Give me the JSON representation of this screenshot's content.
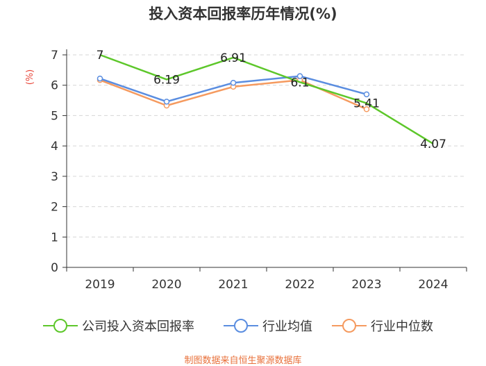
{
  "chart_data": {
    "type": "line",
    "title": "投入资本回报率历年情况(%)",
    "ylabel": "(%)",
    "xlabel": "",
    "ylim": [
      0,
      7
    ],
    "yticks": [
      0,
      1,
      2,
      3,
      4,
      5,
      6,
      7
    ],
    "categories": [
      "2019",
      "2020",
      "2021",
      "2022",
      "2023",
      "2024"
    ],
    "grid": "horizontal-dashed",
    "legend_position": "bottom",
    "series": [
      {
        "name": "公司投入资本回报率",
        "color": "#5dc72a",
        "values": [
          7,
          6.19,
          6.91,
          6.1,
          5.41,
          4.07
        ],
        "labels": [
          "7",
          "6.19",
          "6.91",
          "6.1",
          "5.41",
          "4.07"
        ]
      },
      {
        "name": "行业均值",
        "color": "#5a8de0",
        "values": [
          6.22,
          5.46,
          6.08,
          6.3,
          5.7,
          null
        ]
      },
      {
        "name": "行业中位数",
        "color": "#f59a5f",
        "values": [
          6.17,
          5.33,
          5.95,
          6.17,
          5.21,
          null
        ]
      }
    ]
  },
  "source": "制图数据来自恒生聚源数据库"
}
